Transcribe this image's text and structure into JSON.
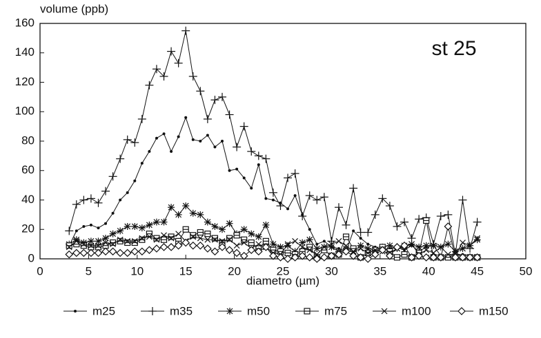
{
  "chart_data": {
    "type": "line",
    "y_label": "volume (ppb)",
    "x_label": "diametro (µm)",
    "annotation": "st 25",
    "xlim": [
      0,
      50
    ],
    "xticks": [
      0,
      5,
      10,
      15,
      20,
      25,
      30,
      35,
      40,
      45,
      50
    ],
    "ylim": [
      0,
      160
    ],
    "yticks": [
      0,
      20,
      40,
      60,
      80,
      100,
      120,
      140,
      160
    ],
    "legend": "bottom",
    "x": [
      3,
      3.75,
      4.5,
      5.25,
      6,
      6.75,
      7.5,
      8.25,
      9,
      9.75,
      10.5,
      11.25,
      12,
      12.75,
      13.5,
      14.25,
      15,
      15.75,
      16.5,
      17.25,
      18,
      18.75,
      19.5,
      20.25,
      21,
      21.75,
      22.5,
      23.25,
      24,
      24.75,
      25.5,
      26.25,
      27,
      27.75,
      28.5,
      29.25,
      30,
      30.75,
      31.5,
      32.25,
      33,
      33.75,
      34.5,
      35.25,
      36,
      36.75,
      37.5,
      38.25,
      39,
      39.75,
      40.5,
      41.25,
      42,
      42.75,
      43.5,
      44.25,
      45
    ],
    "series": [
      {
        "name": "m25",
        "color": "#111111",
        "marker": "dot",
        "values": [
          9,
          19,
          22,
          23,
          21,
          24,
          31,
          40,
          45,
          53,
          65,
          73,
          82,
          85,
          73,
          83,
          96,
          81,
          80,
          84,
          76,
          80,
          60,
          61,
          55,
          48,
          64,
          41,
          40,
          38,
          34,
          43,
          30,
          20,
          10,
          12,
          8,
          7,
          5,
          19,
          14,
          10,
          8,
          6,
          7,
          8,
          6,
          9,
          5,
          8,
          9,
          2,
          2,
          2,
          3,
          2,
          2
        ]
      },
      {
        "name": "m35",
        "color": "#111111",
        "marker": "plus",
        "values": [
          19,
          37,
          40,
          41,
          38,
          46,
          56,
          68,
          81,
          79,
          95,
          118,
          129,
          124,
          141,
          133,
          155,
          124,
          114,
          95,
          108,
          110,
          98,
          76,
          90,
          73,
          70,
          68,
          45,
          36,
          55,
          58,
          29,
          43,
          40,
          42,
          12,
          35,
          23,
          48,
          18,
          18,
          30,
          41,
          36,
          22,
          25,
          14,
          27,
          28,
          10,
          29,
          30,
          3,
          40,
          7,
          25
        ]
      },
      {
        "name": "m50",
        "color": "#111111",
        "marker": "asterisk",
        "values": [
          10,
          13,
          11,
          12,
          12,
          14,
          17,
          19,
          22,
          22,
          21,
          23,
          25,
          25,
          35,
          30,
          36,
          31,
          30,
          25,
          22,
          20,
          24,
          17,
          20,
          17,
          15,
          23,
          10,
          8,
          9,
          5,
          11,
          13,
          7,
          8,
          8,
          5,
          7,
          5,
          9,
          7,
          6,
          8,
          9,
          7,
          8,
          10,
          8,
          9,
          9,
          8,
          10,
          5,
          7,
          9,
          13
        ]
      },
      {
        "name": "m75",
        "color": "#111111",
        "marker": "square",
        "values": [
          9,
          10,
          9,
          8,
          8,
          9,
          11,
          12,
          11,
          11,
          13,
          17,
          14,
          13,
          15,
          12,
          20,
          16,
          18,
          17,
          14,
          11,
          14,
          16,
          13,
          11,
          7,
          12,
          6,
          5,
          4,
          3,
          5,
          8,
          1,
          6,
          2,
          3,
          15,
          7,
          1,
          4,
          6,
          8,
          5,
          1,
          3,
          1,
          4,
          26,
          1,
          1,
          1,
          1,
          1,
          1,
          1
        ]
      },
      {
        "name": "m100",
        "color": "#111111",
        "marker": "cross",
        "values": [
          8,
          12,
          10,
          9,
          9,
          11,
          10,
          13,
          12,
          12,
          14,
          15,
          13,
          16,
          14,
          17,
          12,
          15,
          14,
          13,
          13,
          12,
          13,
          9,
          11,
          7,
          10,
          8,
          4,
          3,
          10,
          12,
          8,
          6,
          3,
          8,
          10,
          12,
          9,
          5,
          7,
          4,
          6,
          5,
          4,
          7,
          9,
          10,
          3,
          6,
          4,
          8,
          3,
          3,
          11,
          9,
          14
        ]
      },
      {
        "name": "m150",
        "color": "#111111",
        "marker": "diamond",
        "values": [
          3,
          4,
          4,
          4,
          4,
          5,
          5,
          4,
          4,
          5,
          5,
          6,
          7,
          8,
          8,
          9,
          11,
          9,
          9,
          7,
          5,
          8,
          6,
          4,
          2,
          6,
          5,
          8,
          2,
          1,
          0,
          1,
          2,
          1,
          0,
          1,
          2,
          3,
          5,
          2,
          1,
          0,
          3,
          6,
          2,
          8,
          9,
          1,
          2,
          1,
          1,
          1,
          22,
          1,
          1,
          1,
          1
        ]
      }
    ]
  }
}
